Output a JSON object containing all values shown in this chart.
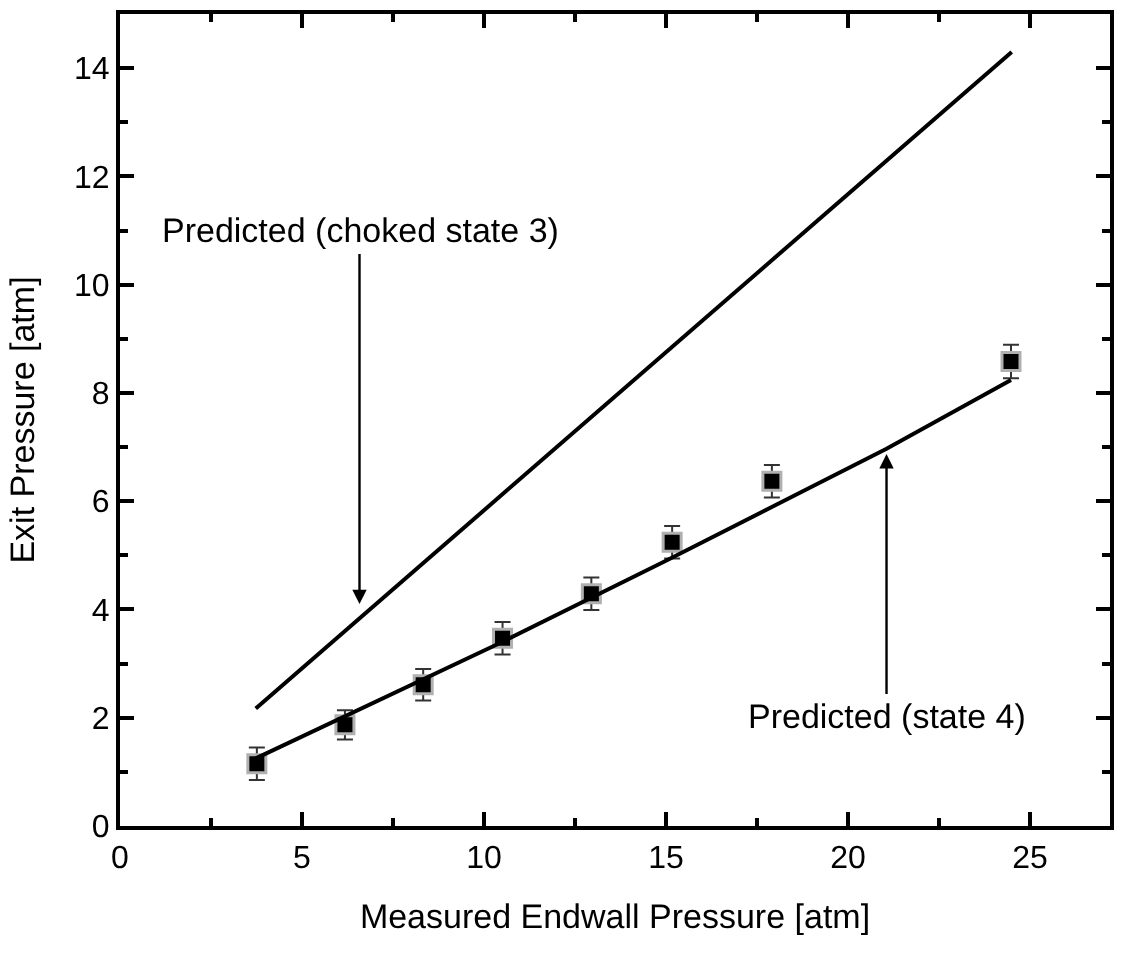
{
  "chart_data": {
    "type": "scatter",
    "xlabel": "Measured Endwall Pressure [atm]",
    "ylabel": "Exit Pressure [atm]",
    "series": [
      {
        "color": "#000000",
        "marker": "square",
        "x": [
          3.76,
          6.18,
          8.33,
          10.51,
          12.95,
          15.17,
          17.91,
          24.48
        ],
        "values": [
          1.15,
          1.87,
          2.61,
          3.47,
          4.29,
          5.24,
          6.37,
          8.58
        ],
        "errors": [
          0.3,
          0.27,
          0.29,
          0.3,
          0.3,
          0.3,
          0.3,
          0.31
        ]
      },
      {
        "type": "line",
        "color": "#000000",
        "line_style": "solid",
        "x": [
          3.73,
          10.5,
          15.0,
          21.06,
          24.48
        ],
        "values": [
          1.25,
          3.4,
          4.9,
          6.97,
          8.24
        ]
      },
      {
        "type": "line",
        "color": "#000000",
        "line_style": "solid",
        "x": [
          3.73,
          24.5
        ],
        "values": [
          2.17,
          14.3
        ]
      }
    ],
    "annotations": [
      {
        "text": "Predicted (choked state 3)",
        "x": 6.58,
        "y": 4.1
      },
      {
        "text": "Predicted (state 4)",
        "x": 21.06,
        "y": 6.87
      }
    ],
    "xlim": [
      0,
      27.2
    ],
    "ylim": [
      0,
      15
    ],
    "xticks": [
      0,
      {
        "value": 2.5,
        "label": null
      },
      5,
      {
        "value": 7.5,
        "label": null
      },
      10,
      {
        "value": 12.5,
        "label": null
      },
      15,
      {
        "value": 17.5,
        "label": null
      },
      20,
      {
        "value": 22.5,
        "label": null
      },
      25
    ],
    "yticks": [
      0,
      {
        "value": 1,
        "label": null
      },
      2,
      {
        "value": 3,
        "label": null
      },
      4,
      {
        "value": 5,
        "label": null
      },
      6,
      {
        "value": 7,
        "label": null
      },
      8,
      {
        "value": 9,
        "label": null
      },
      10,
      {
        "value": 11,
        "label": null
      },
      12,
      {
        "value": 13,
        "label": null
      },
      14
    ]
  }
}
